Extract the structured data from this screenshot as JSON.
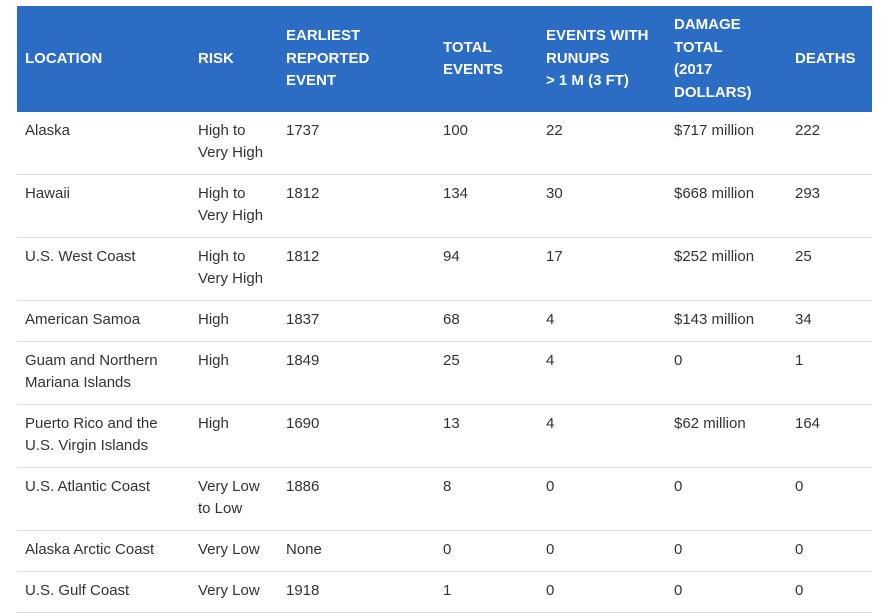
{
  "table": {
    "headers": [
      [
        "LOCATION"
      ],
      [
        "RISK"
      ],
      [
        "EARLIEST",
        "REPORTED",
        "EVENT"
      ],
      [
        "TOTAL",
        "EVENTS"
      ],
      [
        "EVENTS WITH",
        "RUNUPS",
        "> 1 M (3 FT)"
      ],
      [
        "DAMAGE",
        "TOTAL",
        "(2017",
        "DOLLARS)"
      ],
      [
        "DEATHS"
      ]
    ],
    "rows": [
      [
        "Alaska",
        "High to Very High",
        "1737",
        "100",
        "22",
        "$717 million",
        "222"
      ],
      [
        "Hawaii",
        "High to Very High",
        "1812",
        "134",
        "30",
        "$668 million",
        "293"
      ],
      [
        "U.S. West Coast",
        "High to Very High",
        "1812",
        "94",
        "17",
        "$252 million",
        "25"
      ],
      [
        "American Samoa",
        "High",
        "1837",
        "68",
        "4",
        "$143 million",
        "34"
      ],
      [
        "Guam and Northern Mariana Islands",
        "High",
        "1849",
        "25",
        "4",
        "0",
        "1"
      ],
      [
        "Puerto Rico and the U.S. Virgin Islands",
        "High",
        "1690",
        "13",
        "4",
        "$62 million",
        "164"
      ],
      [
        "U.S. Atlantic Coast",
        "Very Low to Low",
        "1886",
        "8",
        "0",
        "0",
        "0"
      ],
      [
        "Alaska Arctic Coast",
        "Very Low",
        "None",
        "0",
        "0",
        "0",
        "0"
      ],
      [
        "U.S. Gulf Coast",
        "Very Low",
        "1918",
        "1",
        "0",
        "0",
        "0"
      ]
    ]
  }
}
